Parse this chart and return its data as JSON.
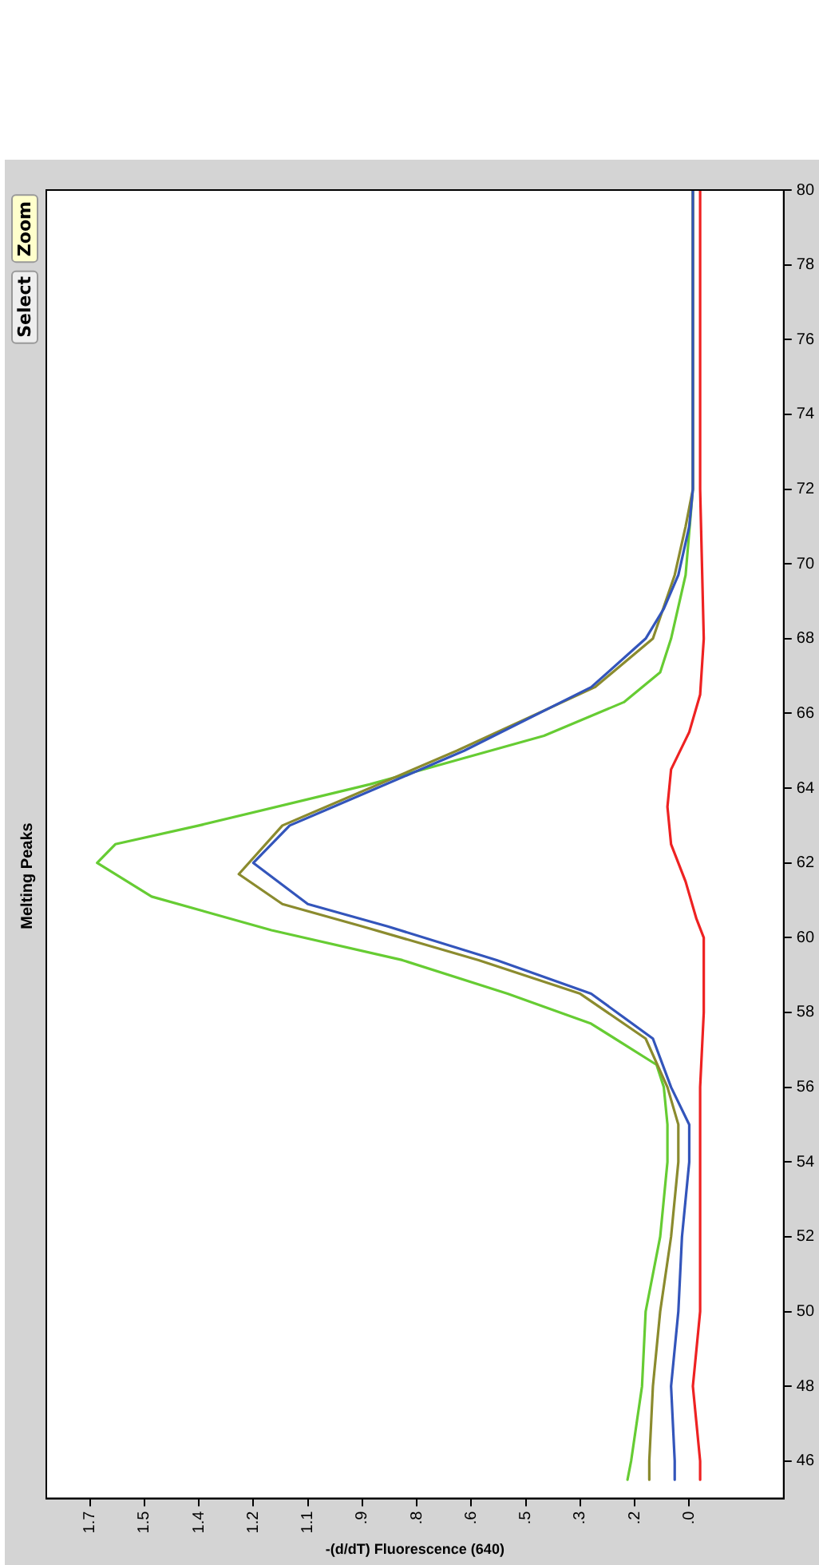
{
  "chart_data": {
    "type": "line",
    "title": "Melting Peaks",
    "xlabel": "-(d/dT) Fluorescence (640)",
    "annotations": [
      "Select",
      "Zoom"
    ],
    "xlim": [
      1.77,
      -0.26
    ],
    "xticks": [
      {
        "value": 1.65,
        "label": "1.7"
      },
      {
        "value": 1.5,
        "label": "1.5"
      },
      {
        "value": 1.35,
        "label": "1.4"
      },
      {
        "value": 1.2,
        "label": "1.2"
      },
      {
        "value": 1.05,
        "label": "1.1"
      },
      {
        "value": 0.9,
        "label": ".9"
      },
      {
        "value": 0.75,
        "label": ".8"
      },
      {
        "value": 0.6,
        "label": ".6"
      },
      {
        "value": 0.45,
        "label": ".5"
      },
      {
        "value": 0.3,
        "label": ".3"
      },
      {
        "value": 0.15,
        "label": ".2"
      },
      {
        "value": 0,
        "label": ".0"
      }
    ],
    "ylim": [
      45,
      80
    ],
    "yticks": [
      46,
      48,
      50,
      52,
      54,
      56,
      58,
      60,
      62,
      64,
      66,
      68,
      70,
      72,
      74,
      76,
      78,
      80
    ],
    "grid": false,
    "legend": false,
    "marker": "none",
    "line_style": "solid",
    "series": [
      {
        "color": "#ee2222",
        "values": [
          45.5,
          46,
          47,
          48,
          49,
          50,
          56,
          58,
          60,
          60.5,
          61.5,
          62.5,
          63.5,
          64.5,
          65.5,
          66.5,
          68,
          72,
          80
        ],
        "x": [
          -0.03,
          -0.03,
          -0.02,
          -0.01,
          -0.02,
          -0.03,
          -0.03,
          -0.04,
          -0.04,
          -0.02,
          0.01,
          0.05,
          0.06,
          0.05,
          0.0,
          -0.03,
          -0.04,
          -0.03,
          -0.03
        ]
      },
      {
        "color": "#3355bb",
        "values": [
          45.5,
          46,
          48,
          50,
          52,
          54,
          55,
          56,
          57.3,
          58.5,
          59.4,
          60.3,
          60.9,
          62,
          63,
          65,
          66.7,
          68,
          68.8,
          69.7,
          71,
          72,
          80
        ],
        "x": [
          0.04,
          0.04,
          0.05,
          0.03,
          0.02,
          0.0,
          0.0,
          0.05,
          0.1,
          0.27,
          0.53,
          0.83,
          1.05,
          1.2,
          1.1,
          0.62,
          0.27,
          0.12,
          0.07,
          0.03,
          0.0,
          -0.01,
          -0.01
        ]
      },
      {
        "color": "#8b8b2e",
        "values": [
          45.5,
          46,
          48,
          50,
          52,
          54,
          55,
          56,
          57.3,
          58.5,
          59.4,
          60.3,
          60.9,
          61.7,
          63,
          65,
          66.7,
          68,
          69.7,
          71,
          72,
          80
        ],
        "x": [
          0.11,
          0.11,
          0.1,
          0.08,
          0.05,
          0.03,
          0.03,
          0.06,
          0.12,
          0.3,
          0.58,
          0.9,
          1.12,
          1.24,
          1.12,
          0.64,
          0.26,
          0.1,
          0.04,
          0.01,
          -0.01,
          -0.01
        ]
      },
      {
        "color": "#66cc33",
        "values": [
          45.5,
          46,
          48,
          50,
          52,
          54,
          55,
          56,
          56.6,
          57.7,
          58.5,
          59.4,
          60.2,
          61.1,
          62,
          62.5,
          63,
          64.1,
          65.4,
          66.3,
          67.1,
          68,
          69.7,
          72,
          80
        ],
        "x": [
          0.17,
          0.16,
          0.13,
          0.12,
          0.08,
          0.06,
          0.06,
          0.07,
          0.09,
          0.27,
          0.5,
          0.79,
          1.15,
          1.48,
          1.63,
          1.58,
          1.35,
          0.88,
          0.4,
          0.18,
          0.08,
          0.05,
          0.01,
          -0.01,
          -0.01
        ]
      }
    ]
  }
}
